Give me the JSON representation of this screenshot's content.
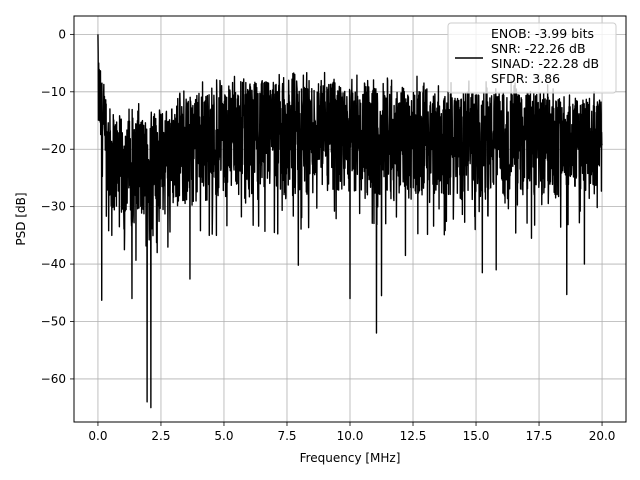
{
  "chart_data": {
    "type": "line",
    "title": "",
    "xlabel": "Frequency [MHz]",
    "ylabel": "PSD [dB]",
    "xlim": [
      -0.95,
      20.95
    ],
    "ylim": [
      -67.5,
      3.2
    ],
    "xticks": [
      0.0,
      2.5,
      5.0,
      7.5,
      10.0,
      12.5,
      15.0,
      17.5,
      20.0
    ],
    "xtick_labels": [
      "0.0",
      "2.5",
      "5.0",
      "7.5",
      "10.0",
      "12.5",
      "15.0",
      "17.5",
      "20.0"
    ],
    "yticks": [
      0,
      -10,
      -20,
      -30,
      -40,
      -50,
      -60
    ],
    "ytick_labels": [
      "0",
      "−10",
      "−20",
      "−30",
      "−40",
      "−50",
      "−60"
    ],
    "grid": true,
    "legend_position": "top-right",
    "legend_entries": [
      "ENOB: -3.99 bits",
      "SNR: -22.26 dB",
      "SINAD: -22.28 dB",
      "SFDR: 3.86"
    ],
    "line_color": "#000000",
    "series": [
      {
        "envelope": {
          "x": [
            0,
            0.3,
            1.0,
            1.5,
            2.0,
            2.5,
            3.5,
            5.0,
            6.0,
            7.0,
            8.0,
            9.0,
            10.0,
            11.0,
            12.0,
            13.0,
            14.0,
            15.0,
            16.0,
            17.0,
            18.0,
            19.0,
            20.0
          ],
          "upper": [
            -3,
            -12,
            -15,
            -14,
            -14,
            -13,
            -11,
            -9,
            -8,
            -8,
            -8,
            -8,
            -9,
            -9,
            -9,
            -9,
            -10,
            -10,
            -10,
            -10,
            -10,
            -11,
            -11
          ],
          "lower": [
            -18,
            -30,
            -33,
            -34,
            -34,
            -32,
            -30,
            -29,
            -29,
            -29,
            -29,
            -29,
            -29,
            -29,
            -29,
            -29,
            -29,
            -29,
            -29,
            -29,
            -29,
            -28,
            -28
          ]
        },
        "peaks": [
          {
            "x": 0.0,
            "y": 0.0
          },
          {
            "x": 0.03,
            "y": -5.0
          },
          {
            "x": 0.08,
            "y": -8.5
          }
        ],
        "dips": [
          {
            "x": 0.15,
            "y": -46.3
          },
          {
            "x": 0.55,
            "y": -35.0
          },
          {
            "x": 0.85,
            "y": -33.5
          },
          {
            "x": 1.05,
            "y": -37.5
          },
          {
            "x": 1.35,
            "y": -46.0
          },
          {
            "x": 1.95,
            "y": -64.0
          },
          {
            "x": 2.1,
            "y": -65.0
          },
          {
            "x": 2.35,
            "y": -38.0
          },
          {
            "x": 3.65,
            "y": -42.6
          },
          {
            "x": 4.7,
            "y": -35.0
          },
          {
            "x": 7.0,
            "y": -34.5
          },
          {
            "x": 7.95,
            "y": -40.2
          },
          {
            "x": 10.0,
            "y": -46.0
          },
          {
            "x": 11.05,
            "y": -52.0
          },
          {
            "x": 11.25,
            "y": -45.5
          },
          {
            "x": 12.2,
            "y": -38.5
          },
          {
            "x": 15.25,
            "y": -41.5
          },
          {
            "x": 15.8,
            "y": -41.0
          },
          {
            "x": 17.2,
            "y": -35.5
          },
          {
            "x": 18.6,
            "y": -45.3
          },
          {
            "x": 19.3,
            "y": -40.0
          }
        ]
      }
    ]
  }
}
